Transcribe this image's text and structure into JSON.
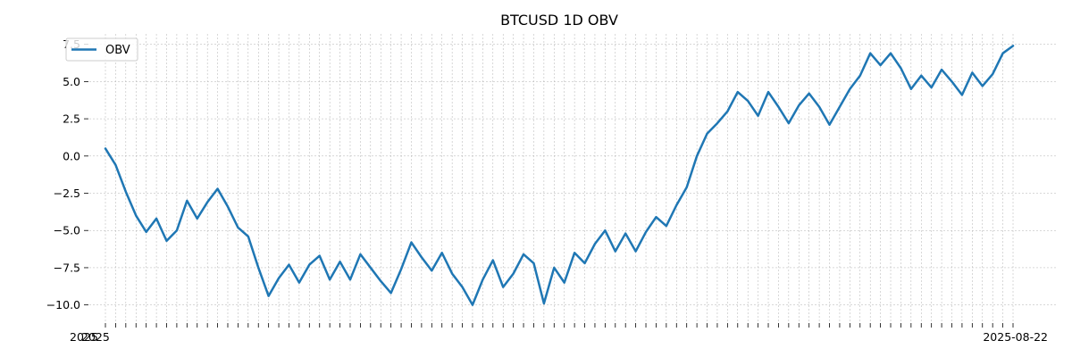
{
  "chart_data": {
    "type": "line",
    "title": "BTCUSD 1D OBV",
    "xlabel": "",
    "ylabel": "",
    "ylim": [
      -11.1,
      8.2
    ],
    "yticks": [
      -10.0,
      -7.5,
      -5.0,
      -2.5,
      0.0,
      2.5,
      5.0,
      7.5
    ],
    "ytick_labels": [
      "−10.0",
      "−7.5",
      "−5.0",
      "−2.5",
      "0.0",
      "2.5",
      "5.0",
      "7.5"
    ],
    "xtick_labels_visible": [
      "2025",
      "2025",
      "2025-08-22"
    ],
    "grid": true,
    "legend": {
      "position": "top-left",
      "entries": [
        {
          "name": "OBV",
          "color": "#1f77b4"
        }
      ]
    },
    "series": [
      {
        "name": "OBV",
        "color": "#1f77b4",
        "values": [
          0.5,
          -0.6,
          -2.4,
          -4.0,
          -5.1,
          -4.2,
          -5.7,
          -5.0,
          -3.0,
          -4.2,
          -3.1,
          -2.2,
          -3.4,
          -4.8,
          -5.4,
          -7.5,
          -9.4,
          -8.2,
          -7.3,
          -8.5,
          -7.3,
          -6.7,
          -8.3,
          -7.1,
          -8.3,
          -6.6,
          -7.5,
          -8.4,
          -9.2,
          -7.6,
          -5.8,
          -6.8,
          -7.7,
          -6.5,
          -7.9,
          -8.8,
          -10.0,
          -8.3,
          -7.0,
          -8.8,
          -7.9,
          -6.6,
          -7.2,
          -9.9,
          -7.5,
          -8.5,
          -6.5,
          -7.2,
          -5.9,
          -5.0,
          -6.4,
          -5.2,
          -6.4,
          -5.1,
          -4.1,
          -4.7,
          -3.3,
          -2.1,
          0.0,
          1.5,
          2.2,
          3.0,
          4.3,
          3.7,
          2.7,
          4.3,
          3.3,
          2.2,
          3.4,
          4.2,
          3.3,
          2.1,
          3.3,
          4.5,
          5.4,
          6.9,
          6.1,
          6.9,
          5.9,
          4.5,
          5.4,
          4.6,
          5.8,
          5.0,
          4.1,
          5.6,
          4.7,
          5.5,
          6.9,
          7.4
        ]
      }
    ]
  }
}
